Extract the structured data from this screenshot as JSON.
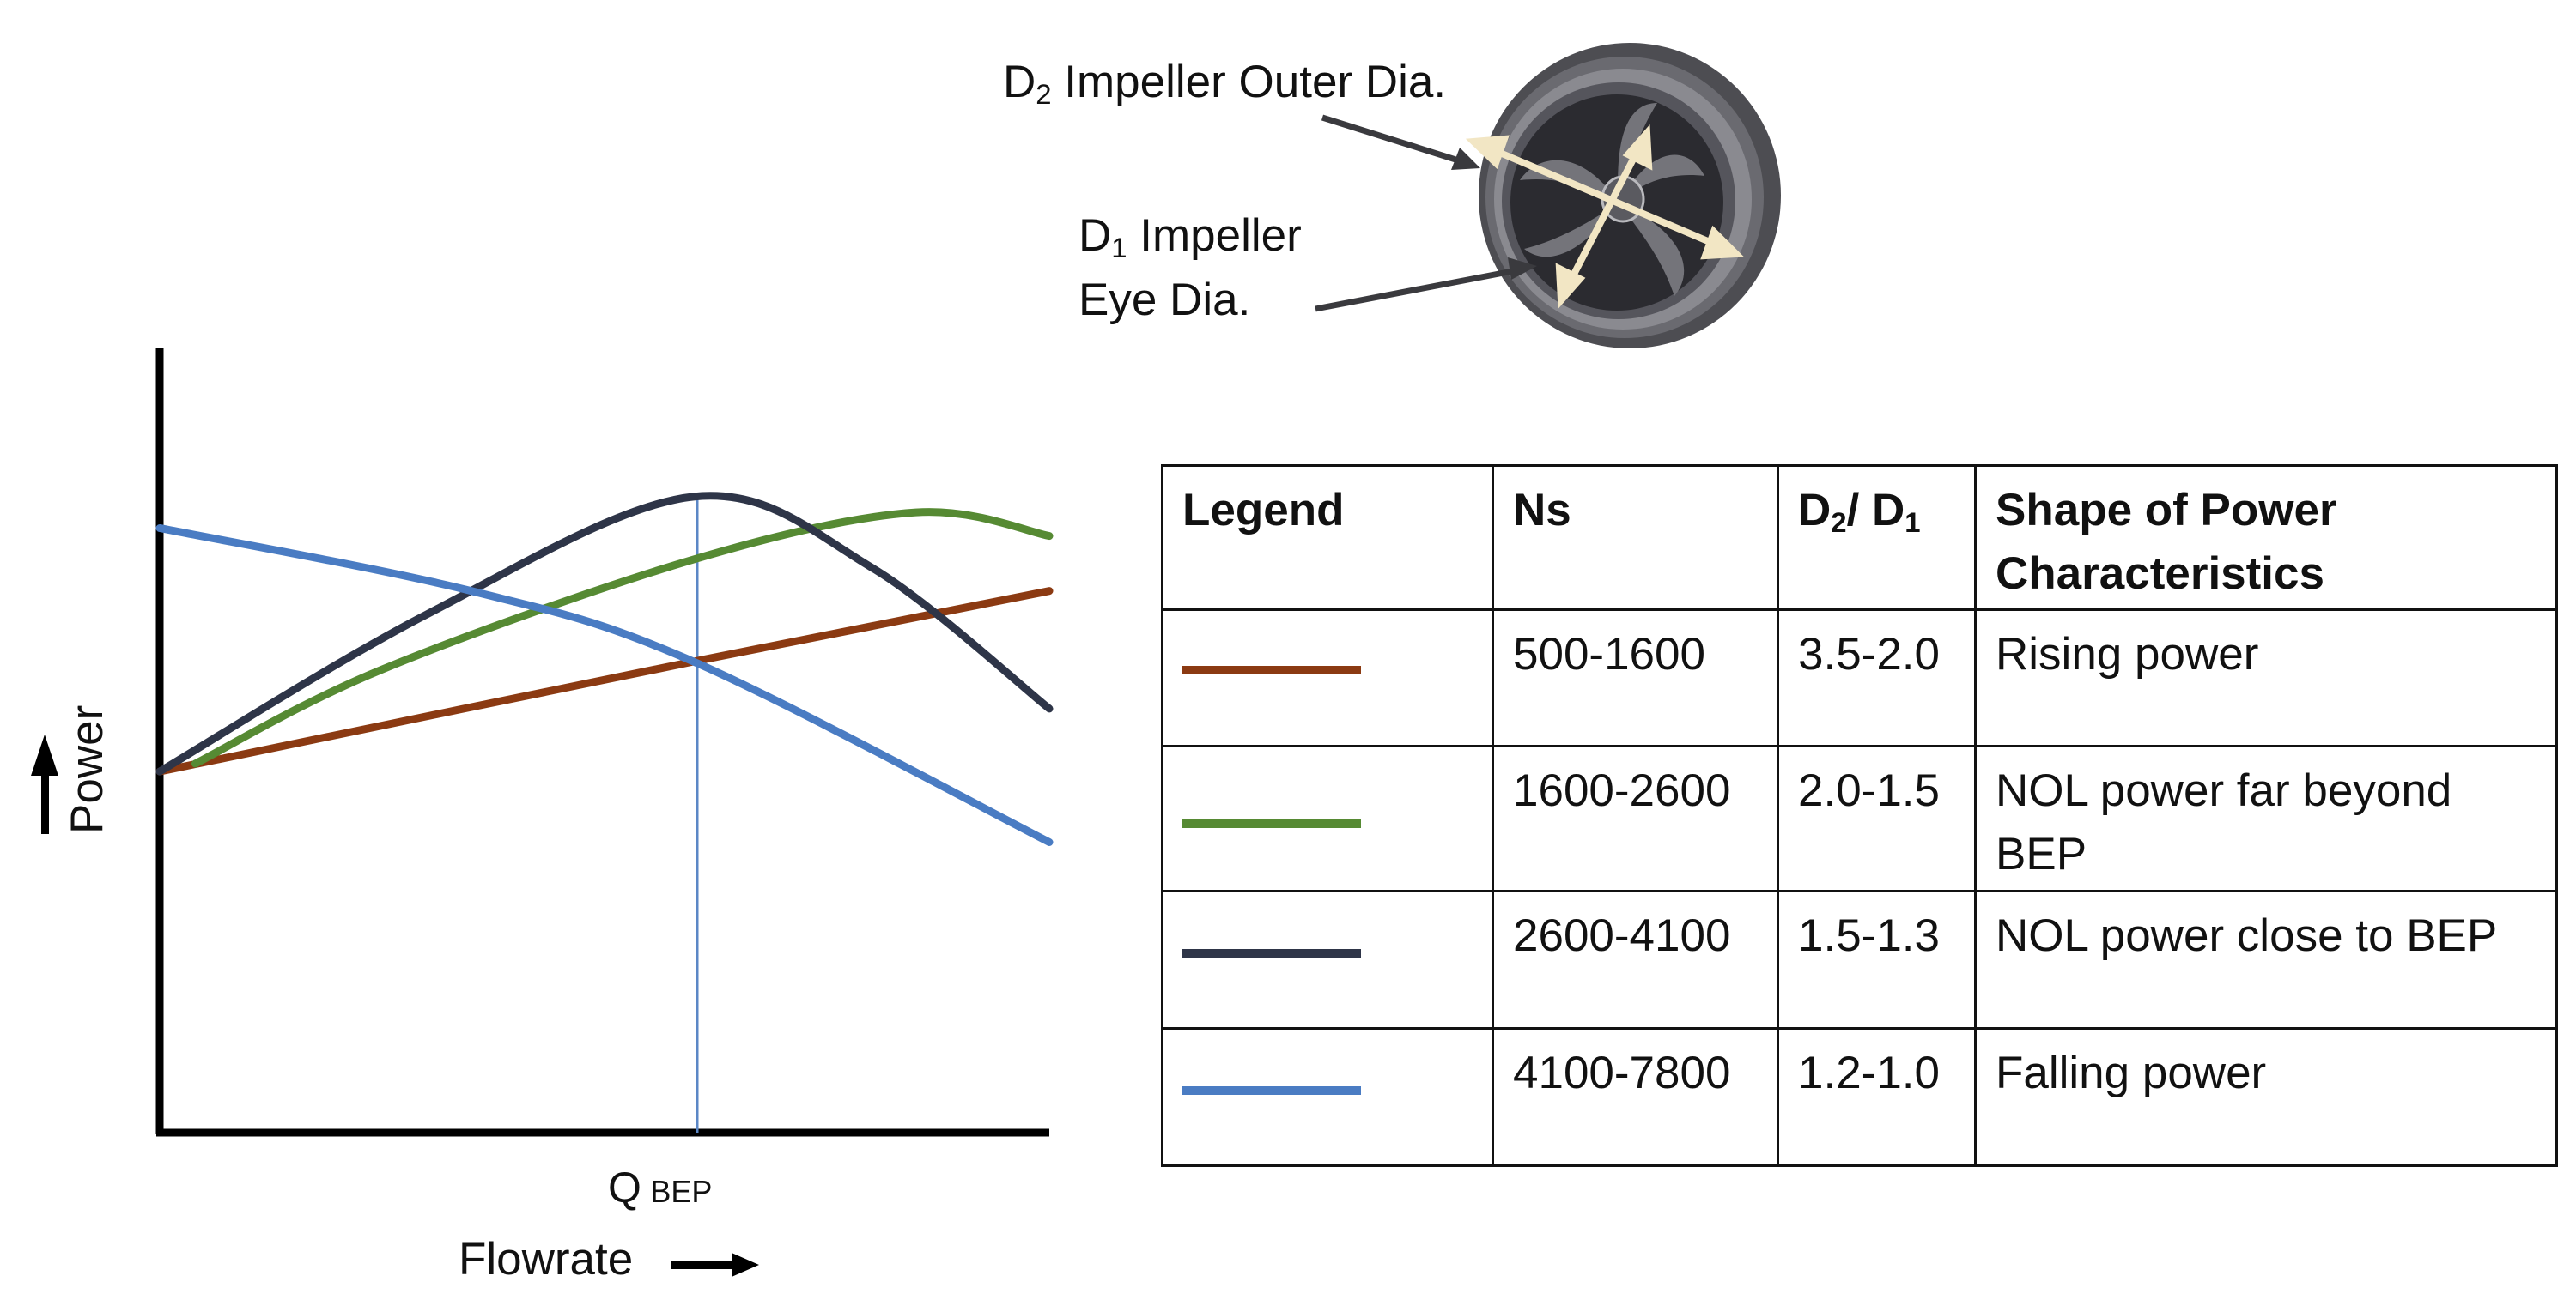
{
  "chart_data": {
    "type": "line",
    "xlabel": "Flowrate",
    "ylabel": "Power",
    "x_tick": {
      "main": "Q",
      "sub": "BEP"
    },
    "series": [
      {
        "color": "#8b3a12",
        "shape": "rising",
        "points": [
          [
            0,
            0.46
          ],
          [
            0.6,
            0.6
          ],
          [
            1,
            0.69
          ]
        ]
      },
      {
        "color": "#568a33",
        "shape": "NOL far beyond BEP",
        "points": [
          [
            0.04,
            0.47
          ],
          [
            0.25,
            0.59
          ],
          [
            0.6,
            0.73
          ],
          [
            0.85,
            0.79
          ],
          [
            1,
            0.76
          ]
        ]
      },
      {
        "color": "#2e3548",
        "shape": "NOL close to BEP",
        "points": [
          [
            0,
            0.46
          ],
          [
            0.3,
            0.66
          ],
          [
            0.6,
            0.81
          ],
          [
            0.8,
            0.72
          ],
          [
            1,
            0.54
          ]
        ]
      },
      {
        "color": "#4a7cc3",
        "shape": "falling",
        "points": [
          [
            0,
            0.77
          ],
          [
            0.35,
            0.69
          ],
          [
            0.6,
            0.6
          ],
          [
            1,
            0.37
          ]
        ]
      }
    ]
  },
  "impeller": {
    "d2_sym": "D",
    "d2_sub": "2",
    "d2_text": " Impeller Outer Dia.",
    "d1_sym": "D",
    "d1_sub": "1",
    "d1_text": " Impeller",
    "d1_text2": "Eye Dia."
  },
  "table": {
    "headers": {
      "legend": "Legend",
      "ns": "Ns",
      "ratio_a": "D",
      "ratio_a_sub": "2",
      "ratio_b": "/ D",
      "ratio_b_sub": "1",
      "shape_1": "Shape of Power",
      "shape_2": "Characteristics"
    },
    "rows": [
      {
        "color": "#8b3a12",
        "ns": "500-1600",
        "ratio": "3.5-2.0",
        "shape_1": "Rising power",
        "shape_2": ""
      },
      {
        "color": "#568a33",
        "ns": "1600-2600",
        "ratio": "2.0-1.5",
        "shape_1": "NOL power far beyond",
        "shape_2": "BEP"
      },
      {
        "color": "#2e3548",
        "ns": "2600-4100",
        "ratio": "1.5-1.3",
        "shape_1": "NOL power close to BEP",
        "shape_2": ""
      },
      {
        "color": "#4a7cc3",
        "ns": "4100-7800",
        "ratio": "1.2-1.0",
        "shape_1": "Falling power",
        "shape_2": ""
      }
    ]
  }
}
